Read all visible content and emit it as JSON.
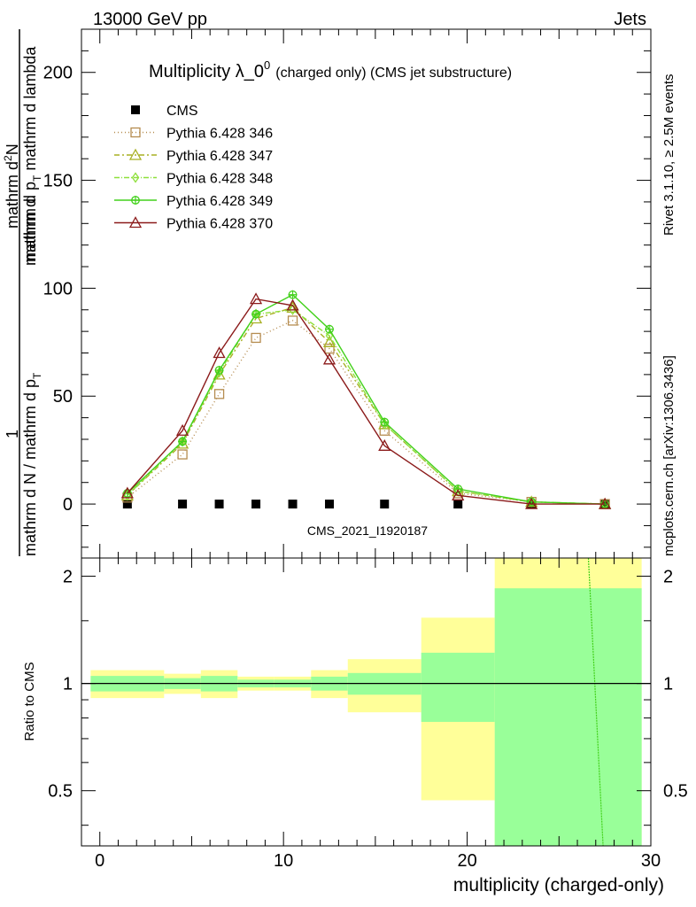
{
  "header": {
    "left": "13000 GeV pp",
    "right": "Jets"
  },
  "side": {
    "rivet": "Rivet 3.1.10, ≥ 2.5M events",
    "mcplots": "mcplots.cern.ch [arXiv:1306.3436]"
  },
  "chart_data": [
    {
      "type": "line",
      "title_main": "Multiplicity λ_0",
      "title_sup": "0",
      "title_sub": "(charged only) (CMS jet substructure)",
      "ylabel_num": "1",
      "ylabel_den": "mathrm d N / mathrm d p",
      "ylabel_den_sub": "T",
      "ylabel_top": "mathrm d",
      "ylabel_top_sup": "2",
      "ylabel_top_n": "N",
      "ylabel_mid": "mathrm d p",
      "ylabel_mid_sub": "T",
      "ylabel_tail": " mathrm d lambda",
      "analysis_watermark": "CMS_2021_I1920187",
      "xlim": [
        -1,
        30
      ],
      "ylim": [
        -25,
        220
      ],
      "yticks": [
        0,
        50,
        100,
        150,
        200
      ],
      "legend_position": "top-left",
      "series": [
        {
          "name": "CMS",
          "color": "#000000",
          "marker": "square-filled",
          "dash": "none",
          "x": [
            1.5,
            4.5,
            6.5,
            8.5,
            10.5,
            12.5,
            15.5,
            19.5,
            23.5,
            27.5
          ],
          "y": [
            0,
            0,
            0,
            0,
            0,
            0,
            0,
            0,
            0,
            0
          ]
        },
        {
          "name": "Pythia 6.428 346",
          "color": "#b58c4f",
          "marker": "square-open",
          "dash": "1,3",
          "x": [
            1.5,
            4.5,
            6.5,
            8.5,
            10.5,
            12.5,
            15.5,
            19.5,
            23.5,
            27.5
          ],
          "y": [
            3,
            23,
            51,
            77,
            85,
            72,
            34,
            5,
            1,
            0
          ]
        },
        {
          "name": "Pythia 6.428 347",
          "color": "#a8b024",
          "marker": "triangle-open",
          "dash": "6,3,2,3",
          "x": [
            1.5,
            4.5,
            6.5,
            8.5,
            10.5,
            12.5,
            15.5,
            19.5,
            23.5,
            27.5
          ],
          "y": [
            4,
            28,
            60,
            86,
            91,
            75,
            37,
            6,
            1,
            0
          ]
        },
        {
          "name": "Pythia 6.428 348",
          "color": "#8ee03b",
          "marker": "diamond-open",
          "dash": "6,2,1,2",
          "x": [
            1.5,
            4.5,
            6.5,
            8.5,
            10.5,
            12.5,
            15.5,
            19.5,
            23.5,
            27.5
          ],
          "y": [
            4,
            29,
            61,
            88,
            90,
            78,
            37,
            6,
            1,
            0
          ]
        },
        {
          "name": "Pythia 6.428 349",
          "color": "#42d11b",
          "marker": "circle-cross",
          "dash": "none",
          "x": [
            1.5,
            4.5,
            6.5,
            8.5,
            10.5,
            12.5,
            15.5,
            19.5,
            23.5,
            27.5
          ],
          "y": [
            5,
            29,
            62,
            88,
            97,
            81,
            38,
            7,
            1,
            0
          ]
        },
        {
          "name": "Pythia 6.428 370",
          "color": "#8b1a1a",
          "marker": "triangle-open",
          "dash": "none",
          "x": [
            1.5,
            4.5,
            6.5,
            8.5,
            10.5,
            12.5,
            15.5,
            19.5,
            23.5,
            27.5
          ],
          "y": [
            5,
            34,
            70,
            95,
            92,
            67,
            27,
            4,
            0,
            0
          ]
        }
      ]
    },
    {
      "type": "area",
      "ylabel": "Ratio to CMS",
      "xlabel": "multiplicity (charged-only)",
      "xlim": [
        -1,
        30
      ],
      "ylim": [
        0.35,
        2.25
      ],
      "xticks": [
        0,
        10,
        20,
        30
      ],
      "yticks": [
        0.5,
        1,
        2
      ],
      "reference_line": 1,
      "bins": [
        {
          "x0": -0.5,
          "x1": 3.5,
          "inner": [
            0.95,
            1.05
          ],
          "outer": [
            0.91,
            1.09
          ]
        },
        {
          "x0": 3.5,
          "x1": 5.5,
          "inner": [
            0.965,
            1.035
          ],
          "outer": [
            0.935,
            1.065
          ]
        },
        {
          "x0": 5.5,
          "x1": 7.5,
          "inner": [
            0.95,
            1.05
          ],
          "outer": [
            0.91,
            1.09
          ]
        },
        {
          "x0": 7.5,
          "x1": 9.5,
          "inner": [
            0.975,
            1.025
          ],
          "outer": [
            0.955,
            1.045
          ]
        },
        {
          "x0": 9.5,
          "x1": 11.5,
          "inner": [
            0.975,
            1.025
          ],
          "outer": [
            0.955,
            1.045
          ]
        },
        {
          "x0": 11.5,
          "x1": 13.5,
          "inner": [
            0.955,
            1.045
          ],
          "outer": [
            0.91,
            1.09
          ]
        },
        {
          "x0": 13.5,
          "x1": 17.5,
          "inner": [
            0.93,
            1.07
          ],
          "outer": [
            0.83,
            1.17
          ]
        },
        {
          "x0": 17.5,
          "x1": 21.5,
          "inner": [
            0.78,
            1.22
          ],
          "outer": [
            0.47,
            1.53
          ]
        },
        {
          "x0": 21.5,
          "x1": 29.5,
          "inner": [
            0.35,
            1.85
          ],
          "outer": [
            0.35,
            2.25
          ]
        }
      ],
      "model_ratio_line": {
        "color": "#42d11b",
        "x": [
          26.6,
          27.4
        ],
        "y": [
          2.25,
          0.35
        ]
      }
    }
  ]
}
